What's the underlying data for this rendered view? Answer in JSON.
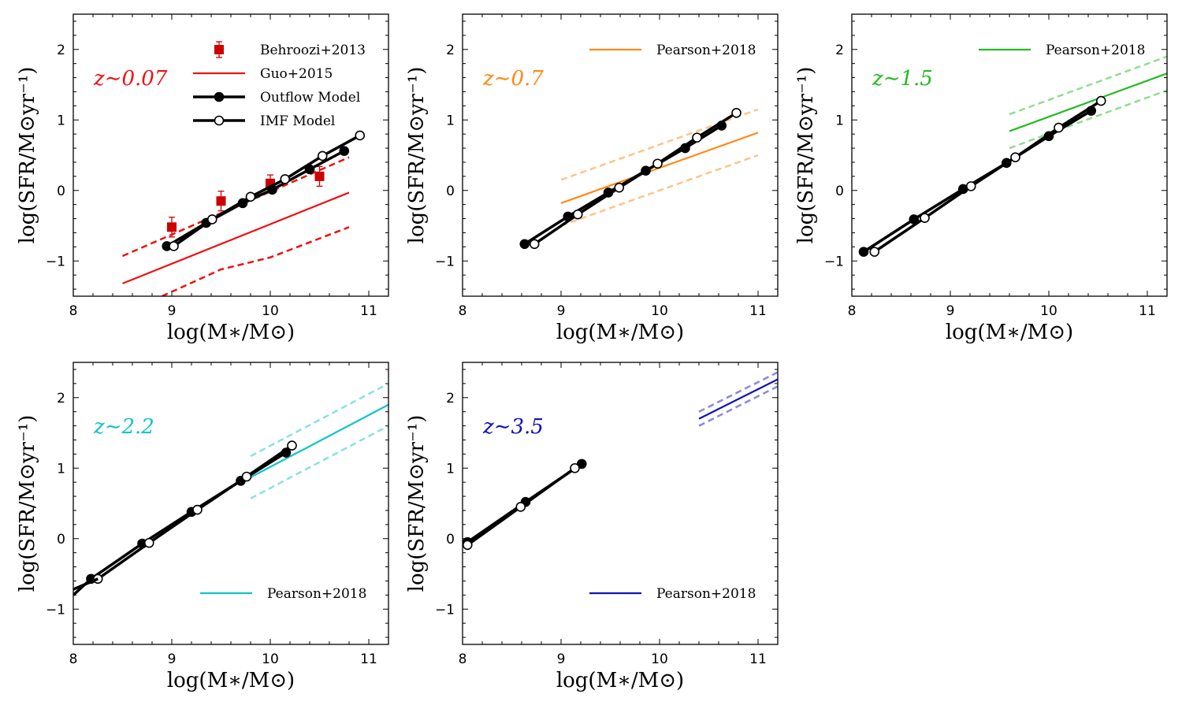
{
  "figure": {
    "xlabel": "log(M∗/M⊙)",
    "ylabel": "log(SFR/M⊙yr⁻¹)",
    "xlim": [
      8,
      11.2
    ],
    "ylim": [
      -1.5,
      2.5
    ],
    "xticks": [
      "8",
      "9",
      "10",
      "11"
    ],
    "yticks": [
      "−1",
      "0",
      "1",
      "2"
    ]
  },
  "chart_data": [
    {
      "type": "line",
      "title": "z∼0.07",
      "title_color": "#ee1111",
      "legend_position": "top-right",
      "legend": [
        "Behroozi+2013",
        "Guo+2015",
        "Outflow Model",
        "IMF Model"
      ],
      "series": [
        {
          "name": "Behroozi+2013",
          "kind": "errorbar",
          "color": "#cc0000",
          "x": [
            9.0,
            9.5,
            10.0,
            10.5
          ],
          "y": [
            -0.52,
            -0.15,
            0.1,
            0.2
          ],
          "err": [
            0.14,
            0.14,
            0.12,
            0.14
          ]
        },
        {
          "name": "Guo+2015",
          "kind": "line",
          "color": "#ee1111",
          "x": [
            8.5,
            10.8
          ],
          "y": [
            -1.32,
            -0.03
          ]
        },
        {
          "name": "Guo+2015 upper",
          "kind": "dashed",
          "color": "#ee1111",
          "x": [
            8.5,
            10.8
          ],
          "y": [
            -0.93,
            0.47
          ]
        },
        {
          "name": "Guo+2015 lower",
          "kind": "dashed",
          "color": "#ee1111",
          "x": [
            8.9,
            9.5,
            10.0,
            10.8
          ],
          "y": [
            -1.5,
            -1.12,
            -0.95,
            -0.52
          ]
        },
        {
          "name": "Outflow Model",
          "kind": "filled",
          "color": "#000000",
          "x": [
            8.95,
            9.35,
            9.72,
            10.02,
            10.4,
            10.75
          ],
          "y": [
            -0.79,
            -0.46,
            -0.18,
            0.01,
            0.3,
            0.56
          ]
        },
        {
          "name": "IMF Model",
          "kind": "open",
          "color": "#000000",
          "x": [
            9.02,
            9.41,
            9.8,
            10.15,
            10.53,
            10.91
          ],
          "y": [
            -0.79,
            -0.41,
            -0.09,
            0.16,
            0.49,
            0.78
          ]
        }
      ]
    },
    {
      "type": "line",
      "title": "z∼0.7",
      "title_color": "#ff8811",
      "legend_position": "top-right",
      "legend": [
        "Pearson+2018"
      ],
      "series": [
        {
          "name": "Pearson+2018",
          "kind": "line",
          "color": "#ff8811",
          "x": [
            9.0,
            11.0
          ],
          "y": [
            -0.18,
            0.82
          ]
        },
        {
          "name": "Pearson+2018 upper",
          "kind": "dashed",
          "color": "#ff8811",
          "alpha": 0.5,
          "x": [
            9.0,
            11.0
          ],
          "y": [
            0.15,
            1.15
          ]
        },
        {
          "name": "Pearson+2018 lower",
          "kind": "dashed",
          "color": "#ff8811",
          "alpha": 0.5,
          "x": [
            9.0,
            11.0
          ],
          "y": [
            -0.5,
            0.5
          ]
        },
        {
          "name": "Outflow Model",
          "kind": "filled",
          "color": "#000000",
          "x": [
            8.63,
            9.07,
            9.48,
            9.86,
            10.26,
            10.63
          ],
          "y": [
            -0.76,
            -0.37,
            -0.03,
            0.28,
            0.6,
            0.92
          ]
        },
        {
          "name": "IMF Model",
          "kind": "open",
          "color": "#000000",
          "x": [
            8.73,
            9.17,
            9.59,
            9.98,
            10.38,
            10.78
          ],
          "y": [
            -0.76,
            -0.34,
            0.04,
            0.38,
            0.75,
            1.1
          ]
        }
      ]
    },
    {
      "type": "line",
      "title": "z∼1.5",
      "title_color": "#22bb22",
      "legend_position": "top-right",
      "legend": [
        "Pearson+2018"
      ],
      "series": [
        {
          "name": "Pearson+2018",
          "kind": "line",
          "color": "#22bb22",
          "x": [
            9.6,
            11.2
          ],
          "y": [
            0.84,
            1.66
          ]
        },
        {
          "name": "Pearson+2018 upper",
          "kind": "dashed",
          "color": "#22bb22",
          "alpha": 0.5,
          "x": [
            9.6,
            11.2
          ],
          "y": [
            1.08,
            1.9
          ]
        },
        {
          "name": "Pearson+2018 lower",
          "kind": "dashed",
          "color": "#22bb22",
          "alpha": 0.5,
          "x": [
            9.6,
            11.2
          ],
          "y": [
            0.6,
            1.42
          ]
        },
        {
          "name": "Outflow Model",
          "kind": "filled",
          "color": "#000000",
          "x": [
            8.12,
            8.63,
            9.13,
            9.57,
            10.0,
            10.43
          ],
          "y": [
            -0.87,
            -0.41,
            0.02,
            0.39,
            0.77,
            1.13
          ]
        },
        {
          "name": "IMF Model",
          "kind": "open",
          "color": "#000000",
          "x": [
            8.23,
            8.74,
            9.21,
            9.66,
            10.1,
            10.53
          ],
          "y": [
            -0.87,
            -0.39,
            0.06,
            0.47,
            0.89,
            1.27
          ]
        }
      ]
    },
    {
      "type": "line",
      "title": "z∼2.2",
      "title_color": "#11c4c4",
      "legend_position": "bottom-right",
      "legend": [
        "Pearson+2018"
      ],
      "series": [
        {
          "name": "Pearson+2018",
          "kind": "line",
          "color": "#11c4c4",
          "x": [
            9.8,
            11.2
          ],
          "y": [
            0.87,
            1.9
          ]
        },
        {
          "name": "Pearson+2018 upper",
          "kind": "dashed",
          "color": "#11c4c4",
          "alpha": 0.5,
          "x": [
            9.8,
            11.2
          ],
          "y": [
            1.17,
            2.2
          ]
        },
        {
          "name": "Pearson+2018 lower",
          "kind": "dashed",
          "color": "#11c4c4",
          "alpha": 0.5,
          "x": [
            9.8,
            11.2
          ],
          "y": [
            0.57,
            1.6
          ]
        },
        {
          "name": "Outflow Model",
          "kind": "filled",
          "color": "#000000",
          "x": [
            8.18,
            8.7,
            9.2,
            9.7,
            10.16
          ],
          "y": [
            -0.57,
            -0.07,
            0.38,
            0.82,
            1.22
          ]
        },
        {
          "name": "IMF Model",
          "kind": "open",
          "color": "#000000",
          "x": [
            8.25,
            8.77,
            9.26,
            9.76,
            10.22
          ],
          "y": [
            -0.57,
            -0.06,
            0.41,
            0.88,
            1.32
          ]
        },
        {
          "name": "Outflow extension",
          "kind": "line_only",
          "color": "#000000",
          "x": [
            8.0,
            8.18
          ],
          "y": [
            -0.8,
            -0.57
          ]
        },
        {
          "name": "IMF extension",
          "kind": "line_only",
          "color": "#000000",
          "x": [
            8.0,
            8.25
          ],
          "y": [
            -0.72,
            -0.57
          ]
        }
      ]
    },
    {
      "type": "line",
      "title": "z∼3.5",
      "title_color": "#1111bb",
      "legend_position": "bottom-right",
      "legend": [
        "Pearson+2018"
      ],
      "series": [
        {
          "name": "Pearson+2018",
          "kind": "line",
          "color": "#1111bb",
          "x": [
            10.4,
            11.2
          ],
          "y": [
            1.7,
            2.26
          ]
        },
        {
          "name": "Pearson+2018 upper",
          "kind": "dashed",
          "color": "#1111bb",
          "alpha": 0.5,
          "x": [
            10.4,
            11.2
          ],
          "y": [
            1.8,
            2.36
          ]
        },
        {
          "name": "Pearson+2018 lower",
          "kind": "dashed",
          "color": "#1111bb",
          "alpha": 0.5,
          "x": [
            10.4,
            11.2
          ],
          "y": [
            1.6,
            2.16
          ]
        },
        {
          "name": "Outflow Model",
          "kind": "filled",
          "color": "#000000",
          "x": [
            8.05,
            8.64,
            9.21
          ],
          "y": [
            -0.05,
            0.52,
            1.06
          ]
        },
        {
          "name": "IMF Model",
          "kind": "open",
          "color": "#000000",
          "x": [
            8.05,
            8.59,
            9.14
          ],
          "y": [
            -0.09,
            0.45,
            1.0
          ]
        }
      ]
    }
  ]
}
